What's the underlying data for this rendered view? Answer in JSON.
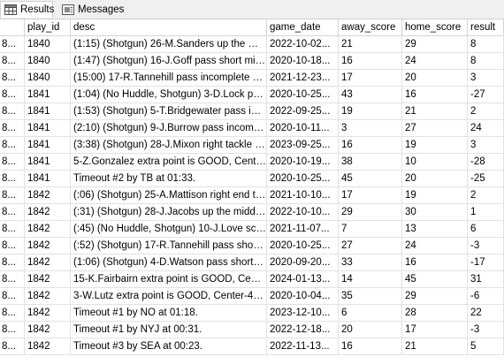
{
  "tabs": {
    "results_label": "Results",
    "messages_label": "Messages"
  },
  "columns": [
    "",
    "play_id",
    "desc",
    "game_date",
    "away_score",
    "home_score",
    "result"
  ],
  "rows": [
    [
      "8...",
      "1840",
      "(1:15) (Shotgun) 26-M.Sanders up the mid...",
      "2022-10-02...",
      "21",
      "29",
      "8"
    ],
    [
      "8...",
      "1840",
      "(1:47) (Shotgun) 16-J.Goff pass short middl...",
      "2020-10-18...",
      "16",
      "24",
      "8"
    ],
    [
      "8...",
      "1840",
      "(15:00) 17-R.Tannehill pass incomplete sh...",
      "2021-12-23...",
      "17",
      "20",
      "3"
    ],
    [
      "8...",
      "1841",
      "(1:04) (No Huddle, Shotgun) 3-D.Lock pas...",
      "2020-10-25...",
      "43",
      "16",
      "-27"
    ],
    [
      "8...",
      "1841",
      "(1:53) (Shotgun) 5-T.Bridgewater pass inc...",
      "2022-09-25...",
      "19",
      "21",
      "2"
    ],
    [
      "8...",
      "1841",
      "(2:10) (Shotgun) 9-J.Burrow pass incomple...",
      "2020-10-11...",
      "3",
      "27",
      "24"
    ],
    [
      "8...",
      "1841",
      "(3:38) (Shotgun) 28-J.Mixon right tackle to ...",
      "2023-09-25...",
      "16",
      "19",
      "3"
    ],
    [
      "8...",
      "1841",
      "5-Z.Gonzalez extra point is GOOD, Center-...",
      "2020-10-19...",
      "38",
      "10",
      "-28"
    ],
    [
      "8...",
      "1841",
      "Timeout #2 by TB at 01:33.",
      "2020-10-25...",
      "45",
      "20",
      "-25"
    ],
    [
      "8...",
      "1842",
      "(:06) (Shotgun) 25-A.Mattison right end to ...",
      "2021-10-10...",
      "17",
      "19",
      "2"
    ],
    [
      "8...",
      "1842",
      "(:31) (Shotgun) 28-J.Jacobs up the middle ...",
      "2022-10-10...",
      "29",
      "30",
      "1"
    ],
    [
      "8...",
      "1842",
      "(:45) (No Huddle, Shotgun) 10-J.Love scra...",
      "2021-11-07...",
      "7",
      "13",
      "6"
    ],
    [
      "8...",
      "1842",
      "(:52) (Shotgun) 17-R.Tannehill pass short r...",
      "2020-10-25...",
      "27",
      "24",
      "-3"
    ],
    [
      "8...",
      "1842",
      "(1:06) (Shotgun) 4-D.Watson pass short ri...",
      "2020-09-20...",
      "33",
      "16",
      "-17"
    ],
    [
      "8...",
      "1842",
      "15-K.Fairbairn extra point is GOOD, Center...",
      "2024-01-13...",
      "14",
      "45",
      "31"
    ],
    [
      "8...",
      "1842",
      "3-W.Lutz extra point is GOOD, Center-49-...",
      "2020-10-04...",
      "35",
      "29",
      "-6"
    ],
    [
      "8...",
      "1842",
      "Timeout #1 by NO at 01:18.",
      "2023-12-10...",
      "6",
      "28",
      "22"
    ],
    [
      "8...",
      "1842",
      "Timeout #1 by NYJ at 00:31.",
      "2022-12-18...",
      "20",
      "17",
      "-3"
    ],
    [
      "8...",
      "1842",
      "Timeout #3 by SEA at 00:23.",
      "2022-11-13...",
      "16",
      "21",
      "5"
    ]
  ],
  "colors": {
    "tab_bg": "#f0f0f0",
    "grid_line": "#e2e2e2"
  },
  "icons": {
    "results": "grid-icon",
    "messages": "messages-icon"
  }
}
